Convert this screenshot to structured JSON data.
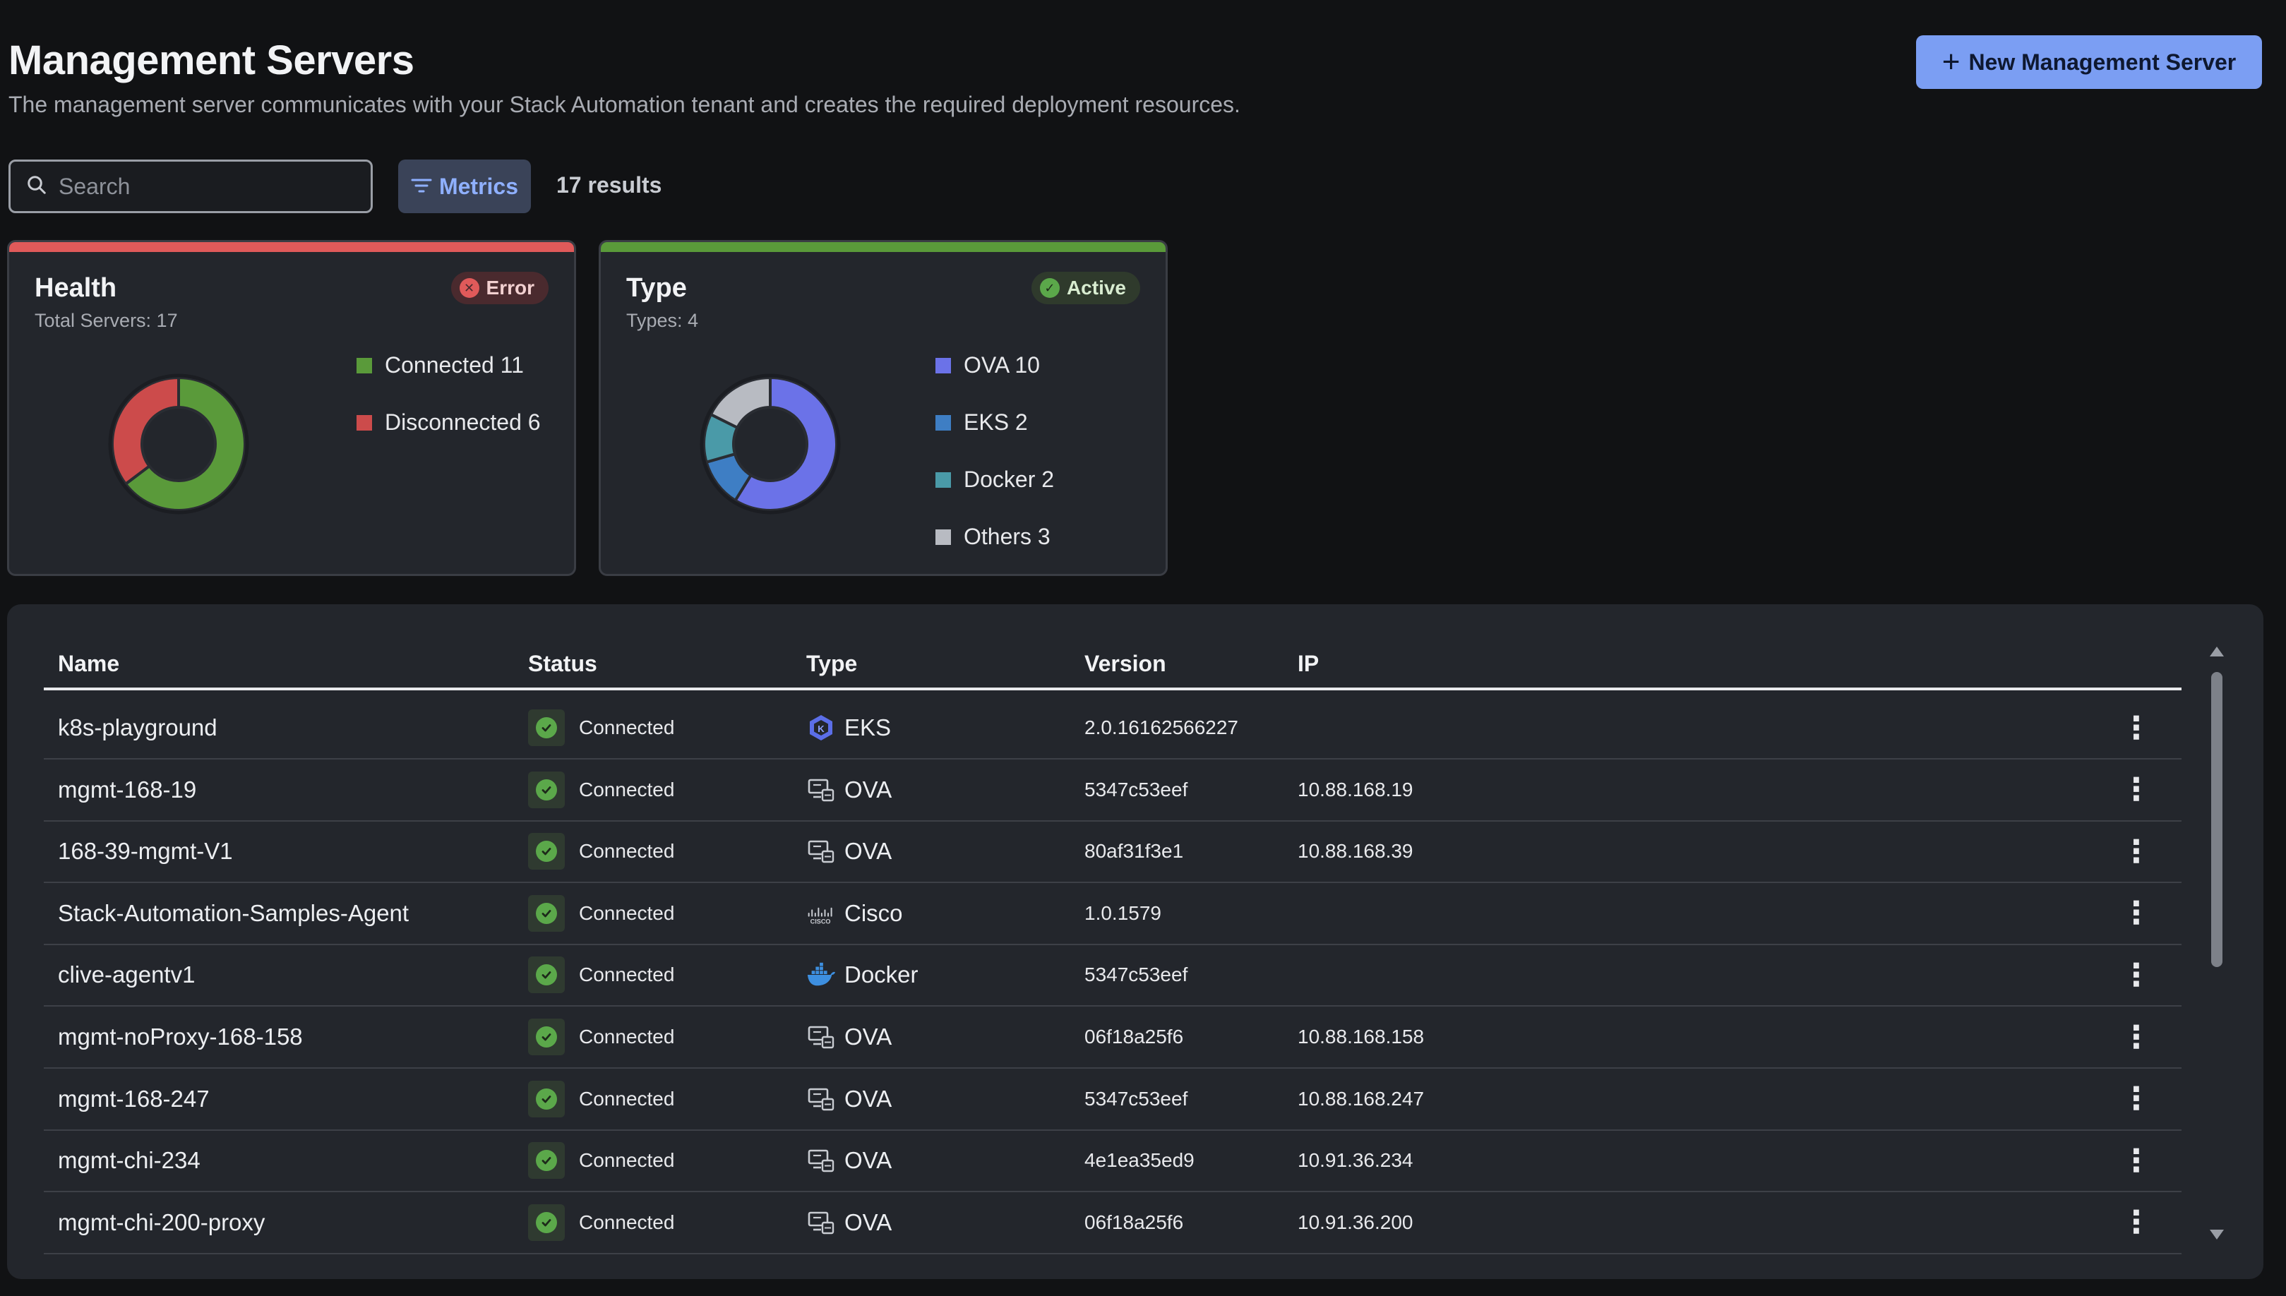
{
  "header": {
    "title": "Management Servers",
    "description": "The management server communicates with your Stack Automation tenant and creates the required deployment resources.",
    "new_button_label": "New Management Server",
    "new_button_icon": "plus-icon"
  },
  "toolbar": {
    "search_placeholder": "Search",
    "search_value": "",
    "metrics_label": "Metrics",
    "results": "17 results"
  },
  "health_card": {
    "title": "Health",
    "subtitle": "Total Servers: 17",
    "badge": "Error",
    "accent": "#e05a5a",
    "legend": [
      {
        "label": "Connected 11",
        "value": 11,
        "color": "#5a9a3a"
      },
      {
        "label": "Disconnected 6",
        "value": 6,
        "color": "#cc4b4b"
      }
    ]
  },
  "type_card": {
    "title": "Type",
    "subtitle": "Types: 4",
    "badge": "Active",
    "accent": "#5a9a3a",
    "legend": [
      {
        "label": "OVA 10",
        "value": 10,
        "color": "#6b72e8"
      },
      {
        "label": "EKS 2",
        "value": 2,
        "color": "#3e7ec4"
      },
      {
        "label": "Docker 2",
        "value": 2,
        "color": "#4a9aa8"
      },
      {
        "label": "Others 3",
        "value": 3,
        "color": "#b8bbc2"
      }
    ]
  },
  "table": {
    "columns": [
      "Name",
      "Status",
      "Type",
      "Version",
      "IP"
    ],
    "rows": [
      {
        "name": "k8s-playground",
        "status": "Connected",
        "type": "EKS",
        "type_icon": "eks-icon",
        "version": "2.0.16162566227",
        "ip": ""
      },
      {
        "name": "mgmt-168-19",
        "status": "Connected",
        "type": "OVA",
        "type_icon": "ova-icon",
        "version": "5347c53eef",
        "ip": "10.88.168.19"
      },
      {
        "name": "168-39-mgmt-V1",
        "status": "Connected",
        "type": "OVA",
        "type_icon": "ova-icon",
        "version": "80af31f3e1",
        "ip": "10.88.168.39"
      },
      {
        "name": "Stack-Automation-Samples-Agent",
        "status": "Connected",
        "type": "Cisco",
        "type_icon": "cisco-icon",
        "version": "1.0.1579",
        "ip": ""
      },
      {
        "name": "clive-agentv1",
        "status": "Connected",
        "type": "Docker",
        "type_icon": "docker-icon",
        "version": "5347c53eef",
        "ip": ""
      },
      {
        "name": "mgmt-noProxy-168-158",
        "status": "Connected",
        "type": "OVA",
        "type_icon": "ova-icon",
        "version": "06f18a25f6",
        "ip": "10.88.168.158"
      },
      {
        "name": "mgmt-168-247",
        "status": "Connected",
        "type": "OVA",
        "type_icon": "ova-icon",
        "version": "5347c53eef",
        "ip": "10.88.168.247"
      },
      {
        "name": "mgmt-chi-234",
        "status": "Connected",
        "type": "OVA",
        "type_icon": "ova-icon",
        "version": "4e1ea35ed9",
        "ip": "10.91.36.234"
      },
      {
        "name": "mgmt-chi-200-proxy",
        "status": "Connected",
        "type": "OVA",
        "type_icon": "ova-icon",
        "version": "06f18a25f6",
        "ip": "10.91.36.200"
      }
    ]
  }
}
